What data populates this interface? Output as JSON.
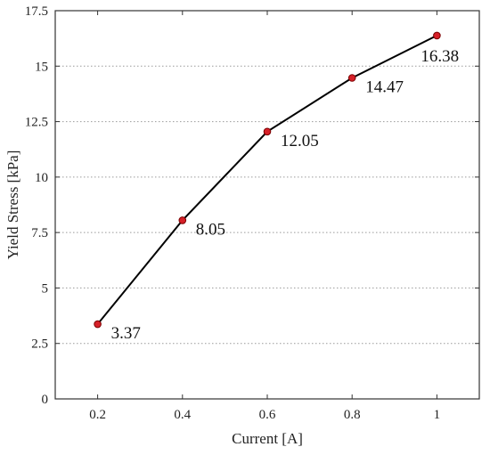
{
  "chart_data": {
    "type": "line",
    "xlabel": "Current [A]",
    "ylabel": "Yield Stress [kPa]",
    "x": [
      0.2,
      0.4,
      0.6,
      0.8,
      1.0
    ],
    "values": [
      3.37,
      8.05,
      12.05,
      14.47,
      16.38
    ],
    "data_labels": [
      "3.37",
      "8.05",
      "12.05",
      "14.47",
      "16.38"
    ],
    "xlim": [
      0.1,
      1.1
    ],
    "ylim": [
      0,
      17.5
    ],
    "xticks": [
      0.2,
      0.4,
      0.6,
      0.8,
      1.0
    ],
    "xtick_labels": [
      "0.2",
      "0.4",
      "0.6",
      "0.8",
      "1"
    ],
    "yticks": [
      0,
      2.5,
      5,
      7.5,
      10,
      12.5,
      15,
      17.5
    ],
    "ytick_labels": [
      "0",
      "2.5",
      "5",
      "7.5",
      "10",
      "12.5",
      "15",
      "17.5"
    ],
    "grid": "horizontal-dotted",
    "colors": {
      "line": "#000000",
      "marker_fill": "#d62028",
      "marker_edge": "#7a0000",
      "grid": "#9a9a9a",
      "axis": "#333333"
    }
  }
}
